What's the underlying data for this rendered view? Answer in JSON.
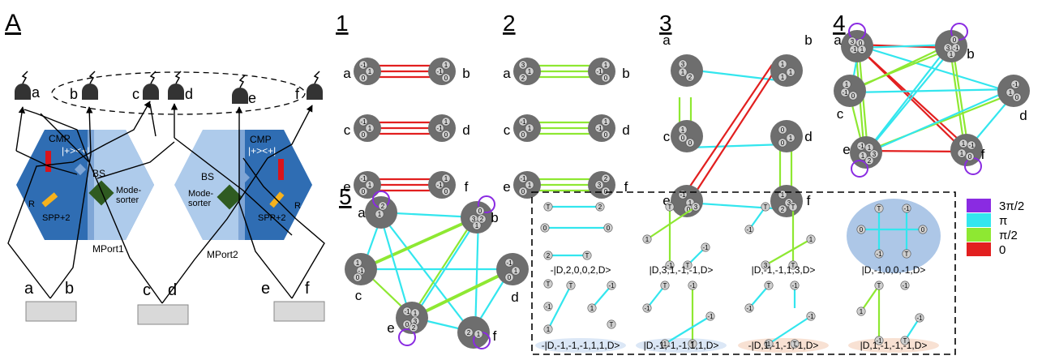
{
  "panels": {
    "A": "A",
    "p1": "1",
    "p2": "2",
    "p3": "3",
    "p4": "4",
    "p5": "5"
  },
  "colors": {
    "purple": "#8a2be2",
    "cyan": "#33e6ee",
    "green": "#8ee832",
    "red": "#e21f1f",
    "node": "#6e6e6e",
    "port_dark": "#2f6db3",
    "port_light": "#aecbeb"
  },
  "legend": [
    {
      "label": "3π/2",
      "color": "#8a2be2"
    },
    {
      "label": "π",
      "color": "#33e6ee"
    },
    {
      "label": "π/2",
      "color": "#8ee832"
    },
    {
      "label": "0",
      "color": "#e21f1f"
    }
  ],
  "setup": {
    "detectors": [
      "a",
      "b",
      "c",
      "d",
      "e",
      "f"
    ],
    "sources": [
      "a",
      "b",
      "c",
      "d",
      "e",
      "f"
    ],
    "mport1": "MPort1",
    "mport2": "MPort2",
    "cmp": "CMP",
    "cmp_op": "|+><+|",
    "bs": "BS",
    "spp": "SPP+2",
    "r": "R",
    "mode_sorter_1": "Mode-",
    "mode_sorter_2": "sorter"
  },
  "kets": [
    "-|D,2,0,0,2,D>",
    "|D,3,1,-1,-1,D>",
    "|D,-1,-1,1,3,D>",
    "|D,-1,0,0,-1,D>",
    "-|D,-1,-1,-1,1,1,D>",
    "|D,-1,-1,-1,1,1,D>",
    "-|D,1,-1,-1,-1,D>",
    "|D,1,-1,-1,-1,D>"
  ]
}
